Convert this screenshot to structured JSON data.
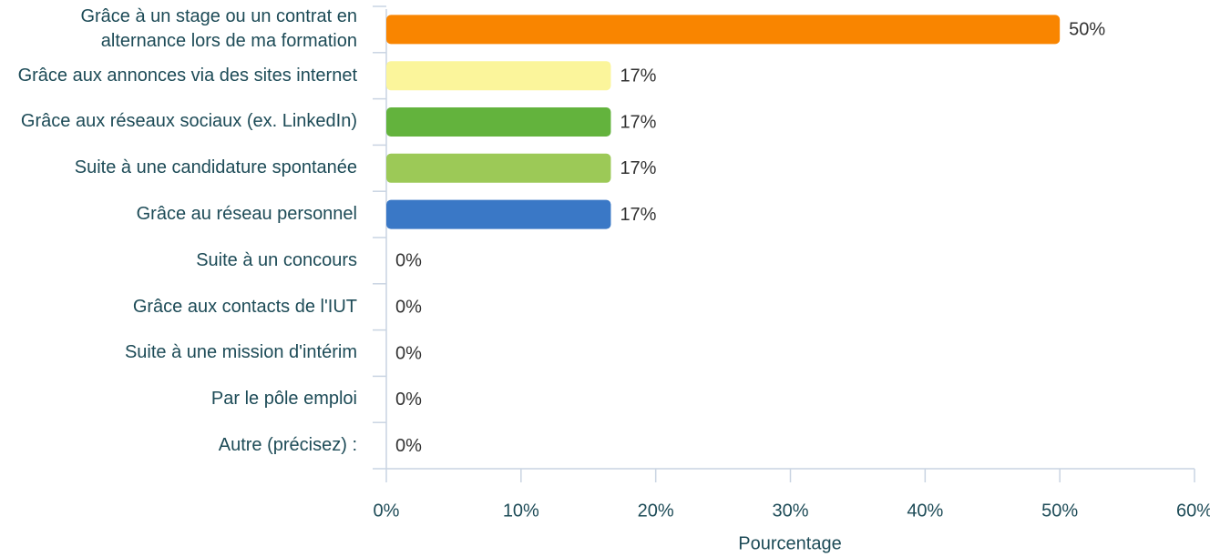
{
  "chart_data": {
    "type": "hbar",
    "categories": [
      "Grâce à un stage ou un contrat en alternance lors de ma formation",
      "Grâce aux annonces via des sites internet",
      "Grâce aux réseaux sociaux (ex. LinkedIn)",
      "Suite à une candidature spontanée",
      "Grâce au réseau personnel",
      "Suite à un concours",
      "Grâce aux contacts de l'IUT",
      "Suite à une mission d'intérim",
      "Par le pôle emploi",
      "Autre (précisez) :"
    ],
    "values": [
      50,
      16.67,
      16.67,
      16.67,
      16.67,
      0,
      0,
      0,
      0,
      0
    ],
    "value_labels": [
      "50%",
      "17%",
      "17%",
      "17%",
      "17%",
      "0%",
      "0%",
      "0%",
      "0%",
      "0%"
    ],
    "colors": [
      "#f98500",
      "#fbf59b",
      "#63b33d",
      "#9cc957",
      "#3a78c6",
      "#3a78c6",
      "#3a78c6",
      "#3a78c6",
      "#3a78c6",
      "#3a78c6"
    ],
    "xlim": [
      0,
      60
    ],
    "xticks": [
      {
        "value": 0,
        "label": "0%"
      },
      {
        "value": 10,
        "label": "10%"
      },
      {
        "value": 20,
        "label": "20%"
      },
      {
        "value": 30,
        "label": "30%"
      },
      {
        "value": 40,
        "label": "40%"
      },
      {
        "value": 50,
        "label": "50%"
      },
      {
        "value": 60,
        "label": "60%"
      }
    ],
    "x_label": "Pourcentage"
  }
}
